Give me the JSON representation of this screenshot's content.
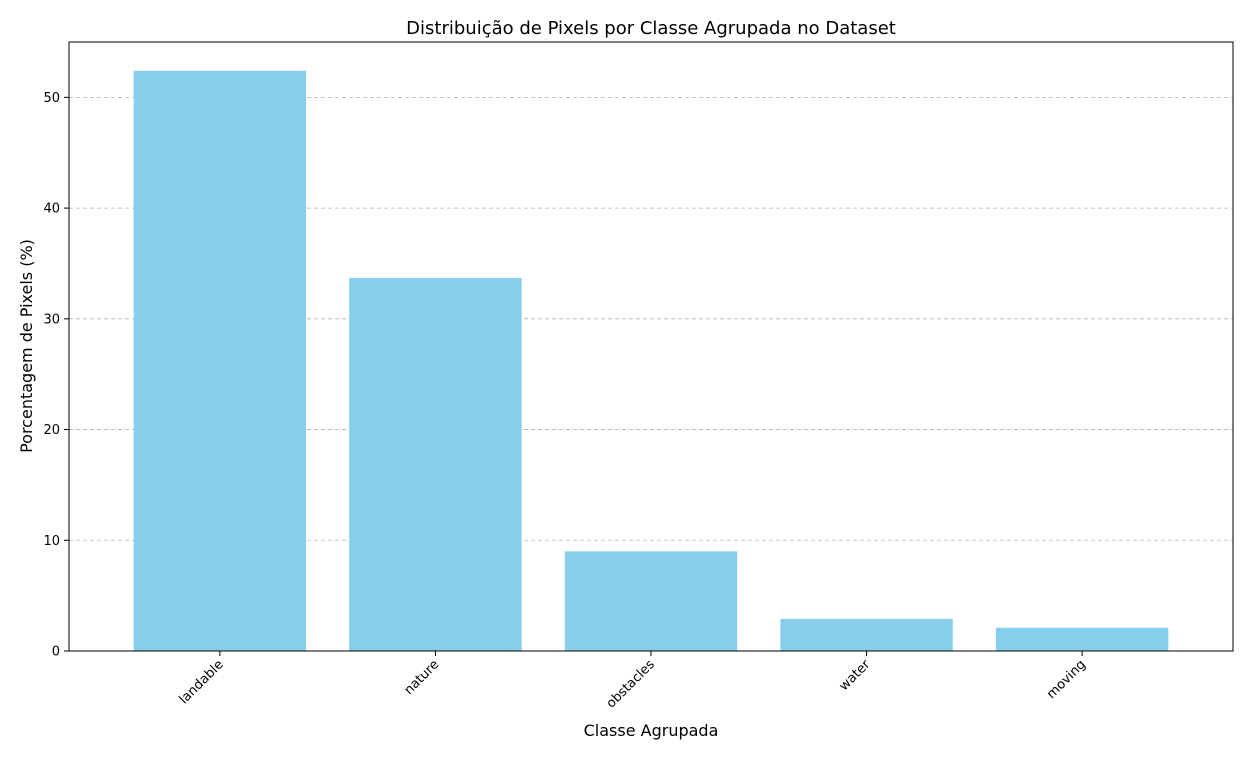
{
  "chart_data": {
    "type": "bar",
    "title": "Distribuição de Pixels por Classe Agrupada no Dataset",
    "xlabel": "Classe Agrupada",
    "ylabel": "Porcentagem de Pixels (%)",
    "categories": [
      "landable",
      "nature",
      "obstacles",
      "water",
      "moving"
    ],
    "values": [
      52.4,
      33.7,
      9.0,
      2.9,
      2.1
    ],
    "ylim": [
      0,
      55
    ],
    "yticks": [
      0,
      10,
      20,
      30,
      40,
      50
    ],
    "grid": "y-axis dashed",
    "bar_color": "#87CEEB",
    "x_tick_rotation_deg": 45
  }
}
